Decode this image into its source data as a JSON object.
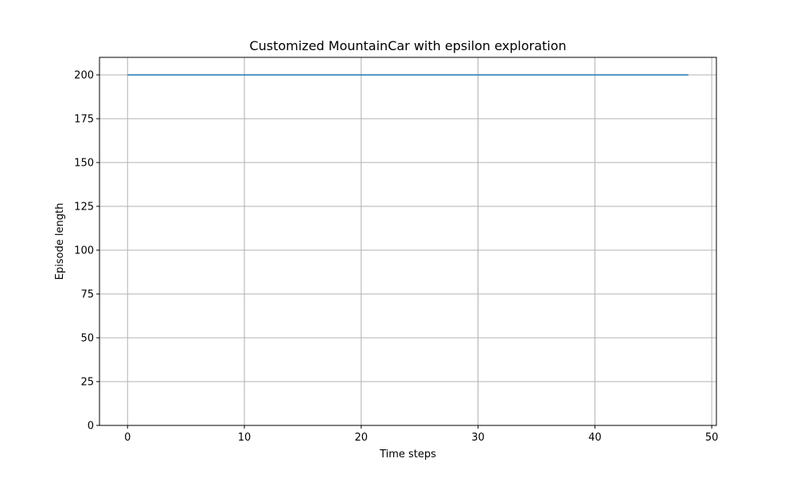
{
  "chart_data": {
    "type": "line",
    "title": "Customized MountainCar with epsilon exploration",
    "xlabel": "Time steps",
    "ylabel": "Episode length",
    "xlim": [
      -2.4,
      50.4
    ],
    "ylim": [
      0,
      210
    ],
    "xticks": [
      0,
      10,
      20,
      30,
      40,
      50
    ],
    "yticks": [
      0,
      25,
      50,
      75,
      100,
      125,
      150,
      175,
      200
    ],
    "grid": true,
    "series": [
      {
        "color": "#1f77b4",
        "x": [
          0,
          1,
          2,
          3,
          4,
          5,
          6,
          7,
          8,
          9,
          10,
          11,
          12,
          13,
          14,
          15,
          16,
          17,
          18,
          19,
          20,
          21,
          22,
          23,
          24,
          25,
          26,
          27,
          28,
          29,
          30,
          31,
          32,
          33,
          34,
          35,
          36,
          37,
          38,
          39,
          40,
          41,
          42,
          43,
          44,
          45,
          46,
          47,
          48
        ],
        "y": [
          200,
          200,
          200,
          200,
          200,
          200,
          200,
          200,
          200,
          200,
          200,
          200,
          200,
          200,
          200,
          200,
          200,
          200,
          200,
          200,
          200,
          200,
          200,
          200,
          200,
          200,
          200,
          200,
          200,
          200,
          200,
          200,
          200,
          200,
          200,
          200,
          200,
          200,
          200,
          200,
          200,
          200,
          200,
          200,
          200,
          200,
          200,
          200,
          200
        ]
      }
    ]
  }
}
